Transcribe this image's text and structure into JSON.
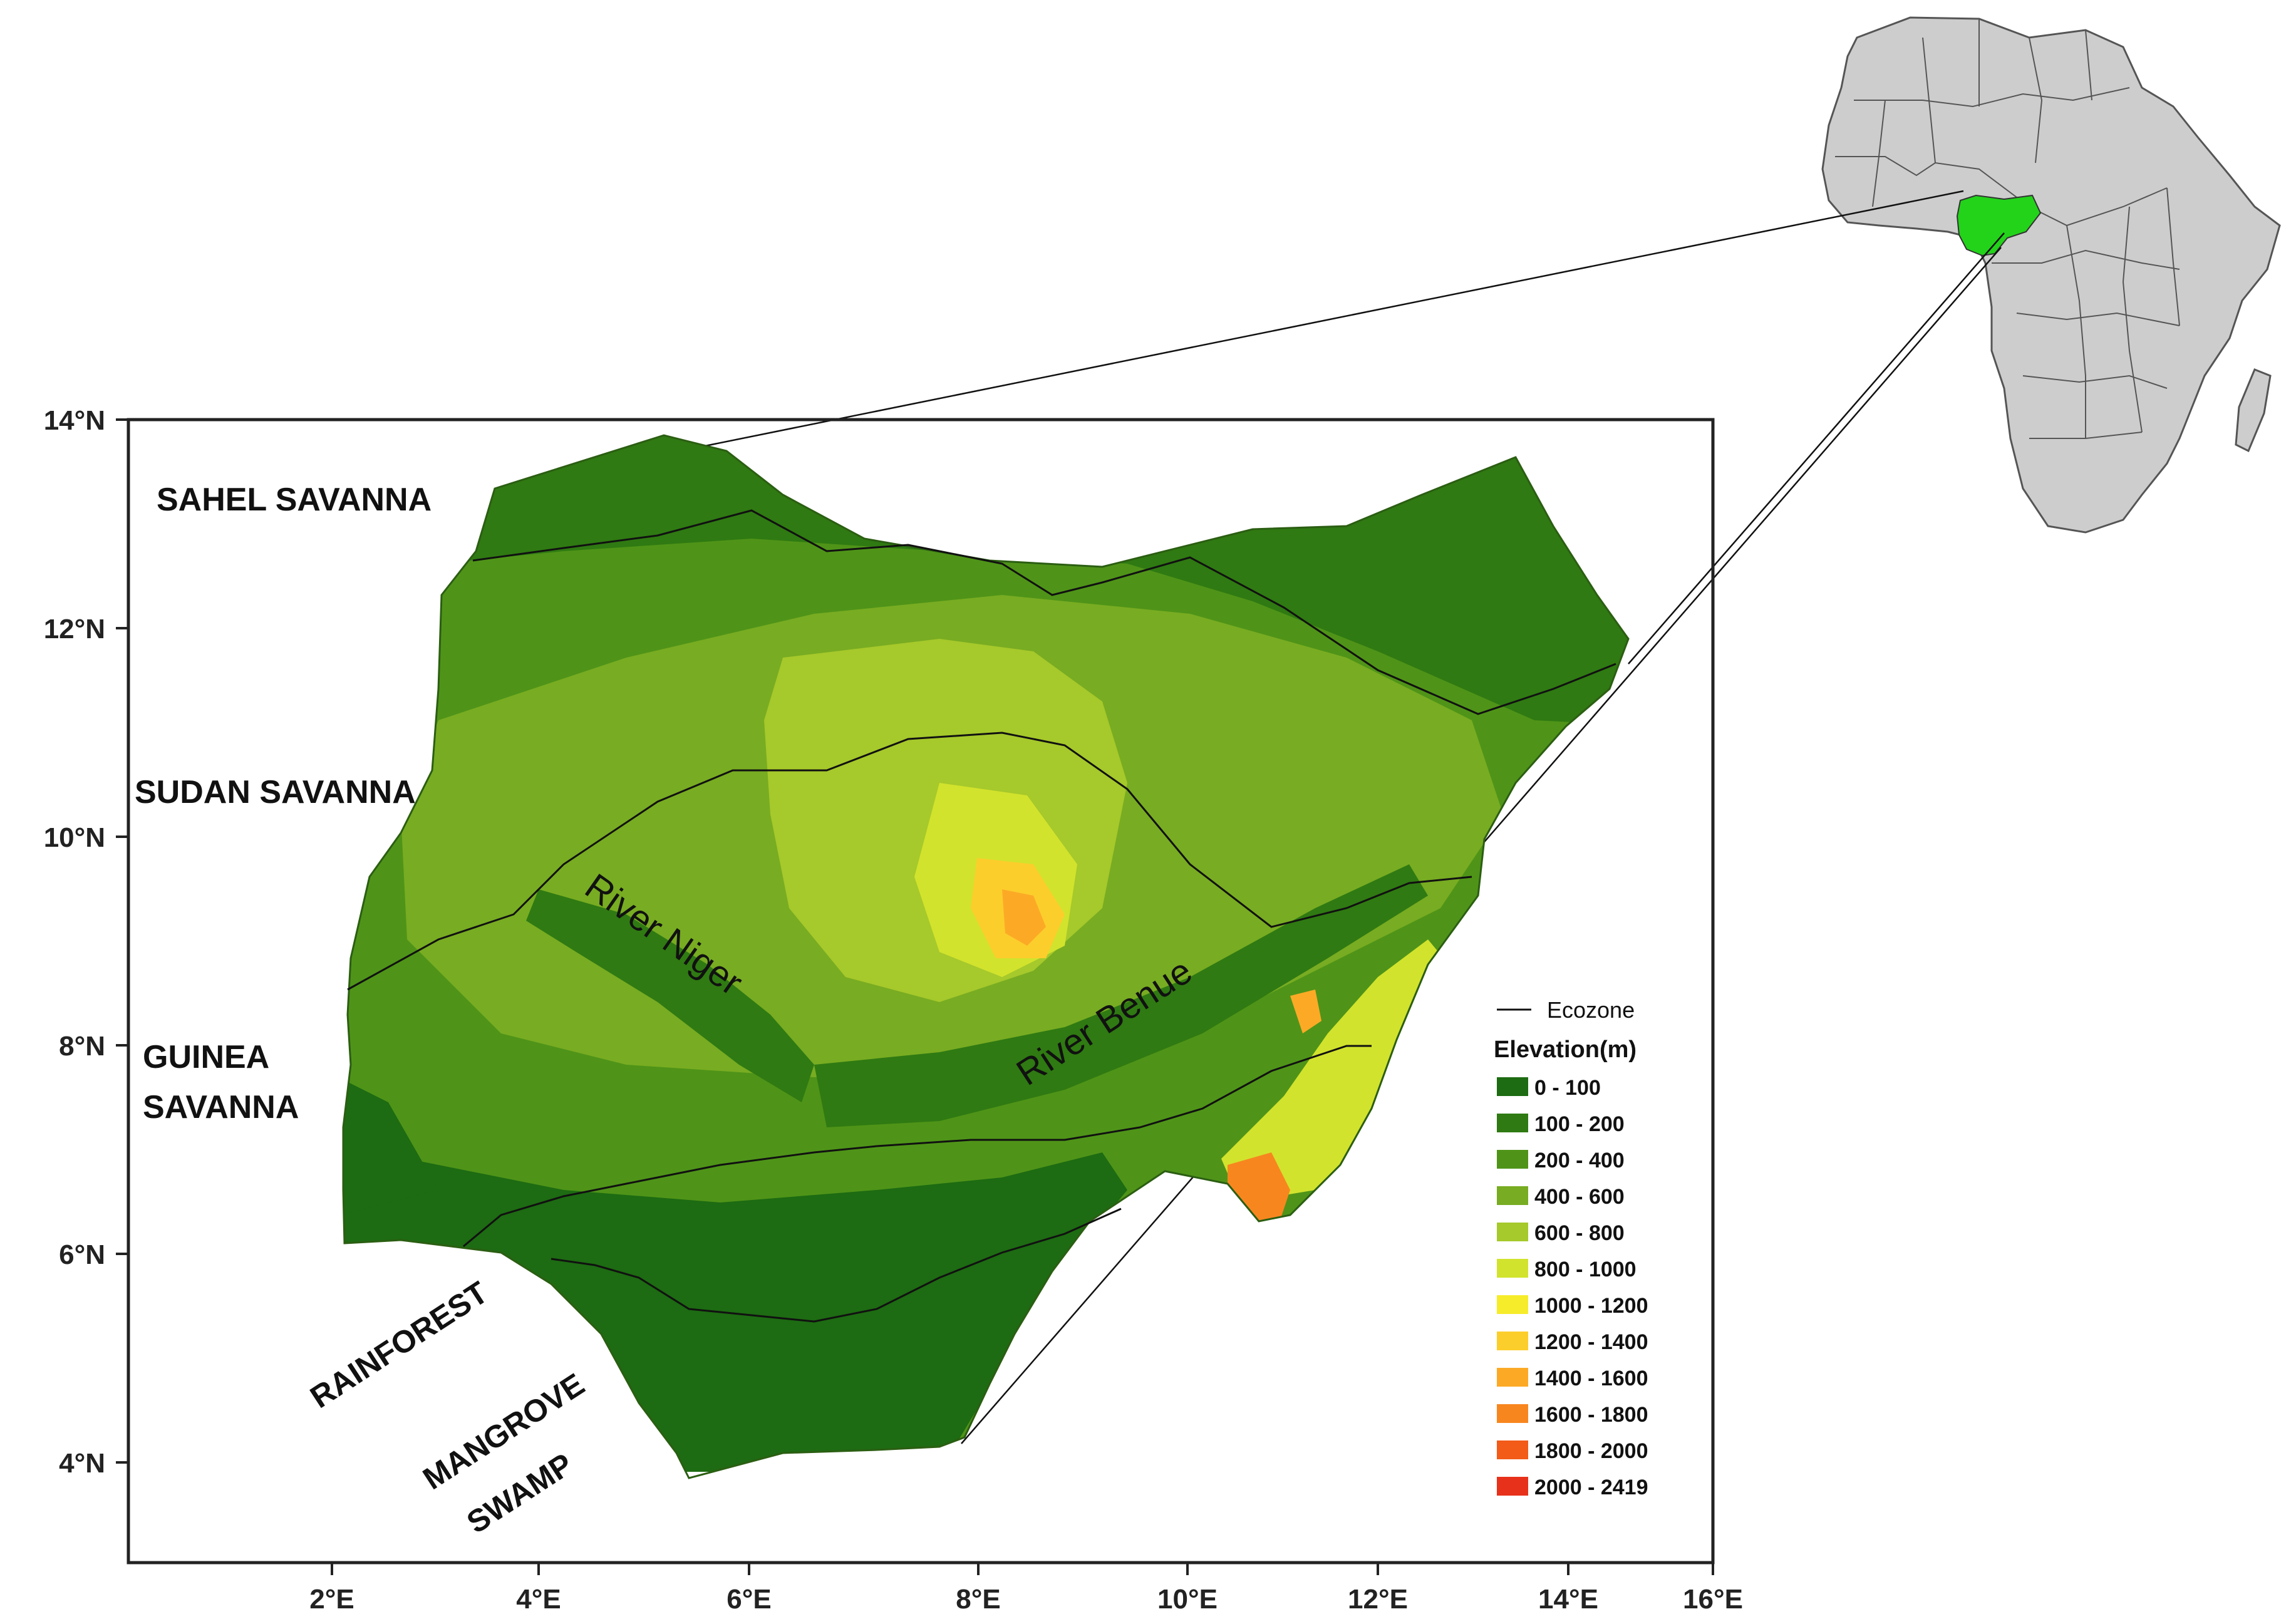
{
  "axes": {
    "lat_ticks": [
      "14°N",
      "12°N",
      "10°N",
      "8°N",
      "6°N",
      "4°N"
    ],
    "lon_ticks": [
      "2°E",
      "4°E",
      "6°E",
      "8°E",
      "10°E",
      "12°E",
      "14°E",
      "16°E"
    ]
  },
  "zones": {
    "sahel": "SAHEL SAVANNA",
    "sudan": "SUDAN SAVANNA",
    "guinea_1": "GUINEA",
    "guinea_2": "SAVANNA",
    "rainforest": "RAINFOREST",
    "mangrove_1": "MANGROVE",
    "mangrove_2": "SWAMP"
  },
  "rivers": {
    "niger": "River Niger",
    "benue": "River Benue"
  },
  "legend": {
    "line_label": "Ecozone",
    "title": "Elevation(m)",
    "classes": [
      {
        "label": "0 - 100",
        "color": "#1d6b12"
      },
      {
        "label": "100 - 200",
        "color": "#2f7a12"
      },
      {
        "label": "200 - 400",
        "color": "#4f9418"
      },
      {
        "label": "400 - 600",
        "color": "#78ac22"
      },
      {
        "label": "600 - 800",
        "color": "#a6c92b"
      },
      {
        "label": "800 - 1000",
        "color": "#d2e32d"
      },
      {
        "label": "1000 - 1200",
        "color": "#f6ec2a"
      },
      {
        "label": "1200 - 1400",
        "color": "#fcce2c"
      },
      {
        "label": "1400 - 1600",
        "color": "#fcaa26"
      },
      {
        "label": "1600 - 1800",
        "color": "#f8861f"
      },
      {
        "label": "1800 - 2000",
        "color": "#f25b18"
      },
      {
        "label": "2000 - 2419",
        "color": "#e8311a"
      }
    ]
  },
  "colors": {
    "africa_fill": "#cdcdcd",
    "nigeria_highlight": "#22d31a"
  }
}
